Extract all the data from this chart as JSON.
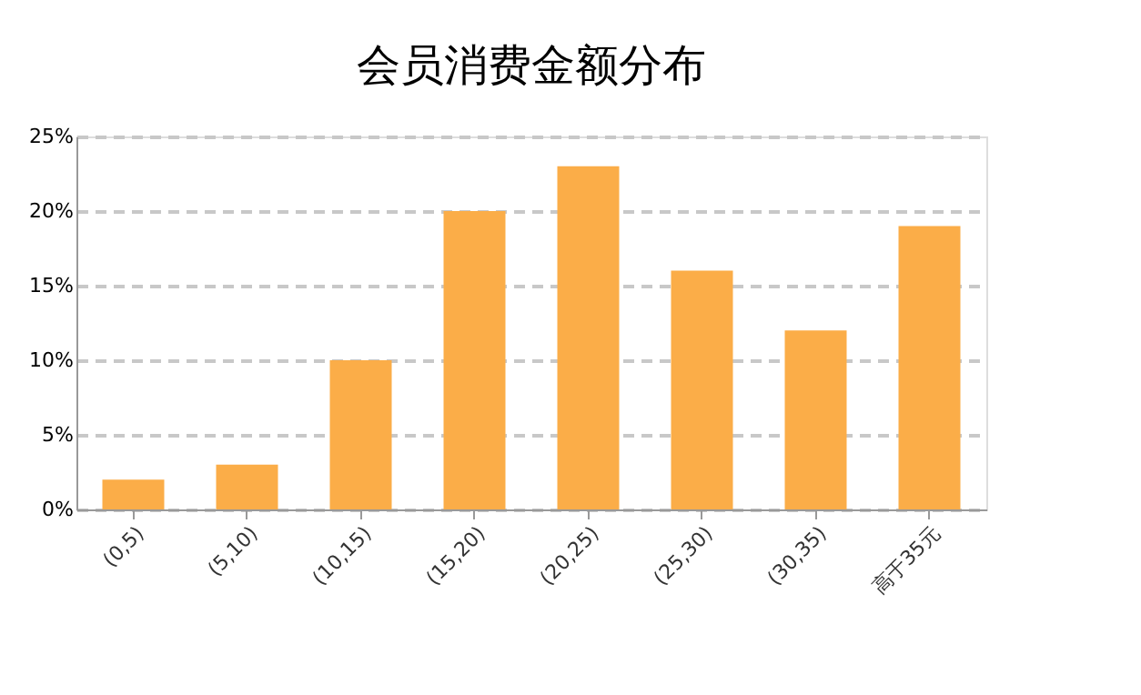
{
  "chart_data": {
    "type": "bar",
    "title": "会员消费金额分布",
    "categories": [
      "(0,5)",
      "(5,10)",
      "(10,15)",
      "(15,20)",
      "(20,25)",
      "(25,30)",
      "(30,35)",
      "高于35元"
    ],
    "values": [
      2,
      3,
      10,
      20,
      23,
      16,
      12,
      19
    ],
    "color": "#fbad48",
    "ylim": [
      0,
      25
    ],
    "yticks": [
      {
        "value": 0,
        "label": "0%"
      },
      {
        "value": 5,
        "label": "5%"
      },
      {
        "value": 10,
        "label": "10%"
      },
      {
        "value": 15,
        "label": "15%"
      },
      {
        "value": 20,
        "label": "20%"
      },
      {
        "value": 25,
        "label": "25%"
      }
    ],
    "grid": "y"
  }
}
